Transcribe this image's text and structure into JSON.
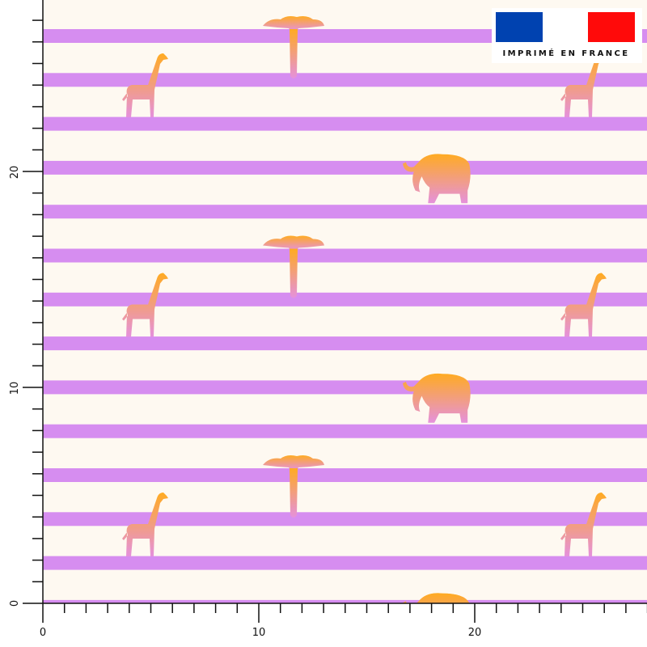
{
  "ruler": {
    "x_labels": [
      "0",
      "10",
      "20"
    ],
    "y_labels": [
      "0",
      "10",
      "20"
    ]
  },
  "badge": {
    "text": "IMPRIMÉ EN FRANCE"
  }
}
